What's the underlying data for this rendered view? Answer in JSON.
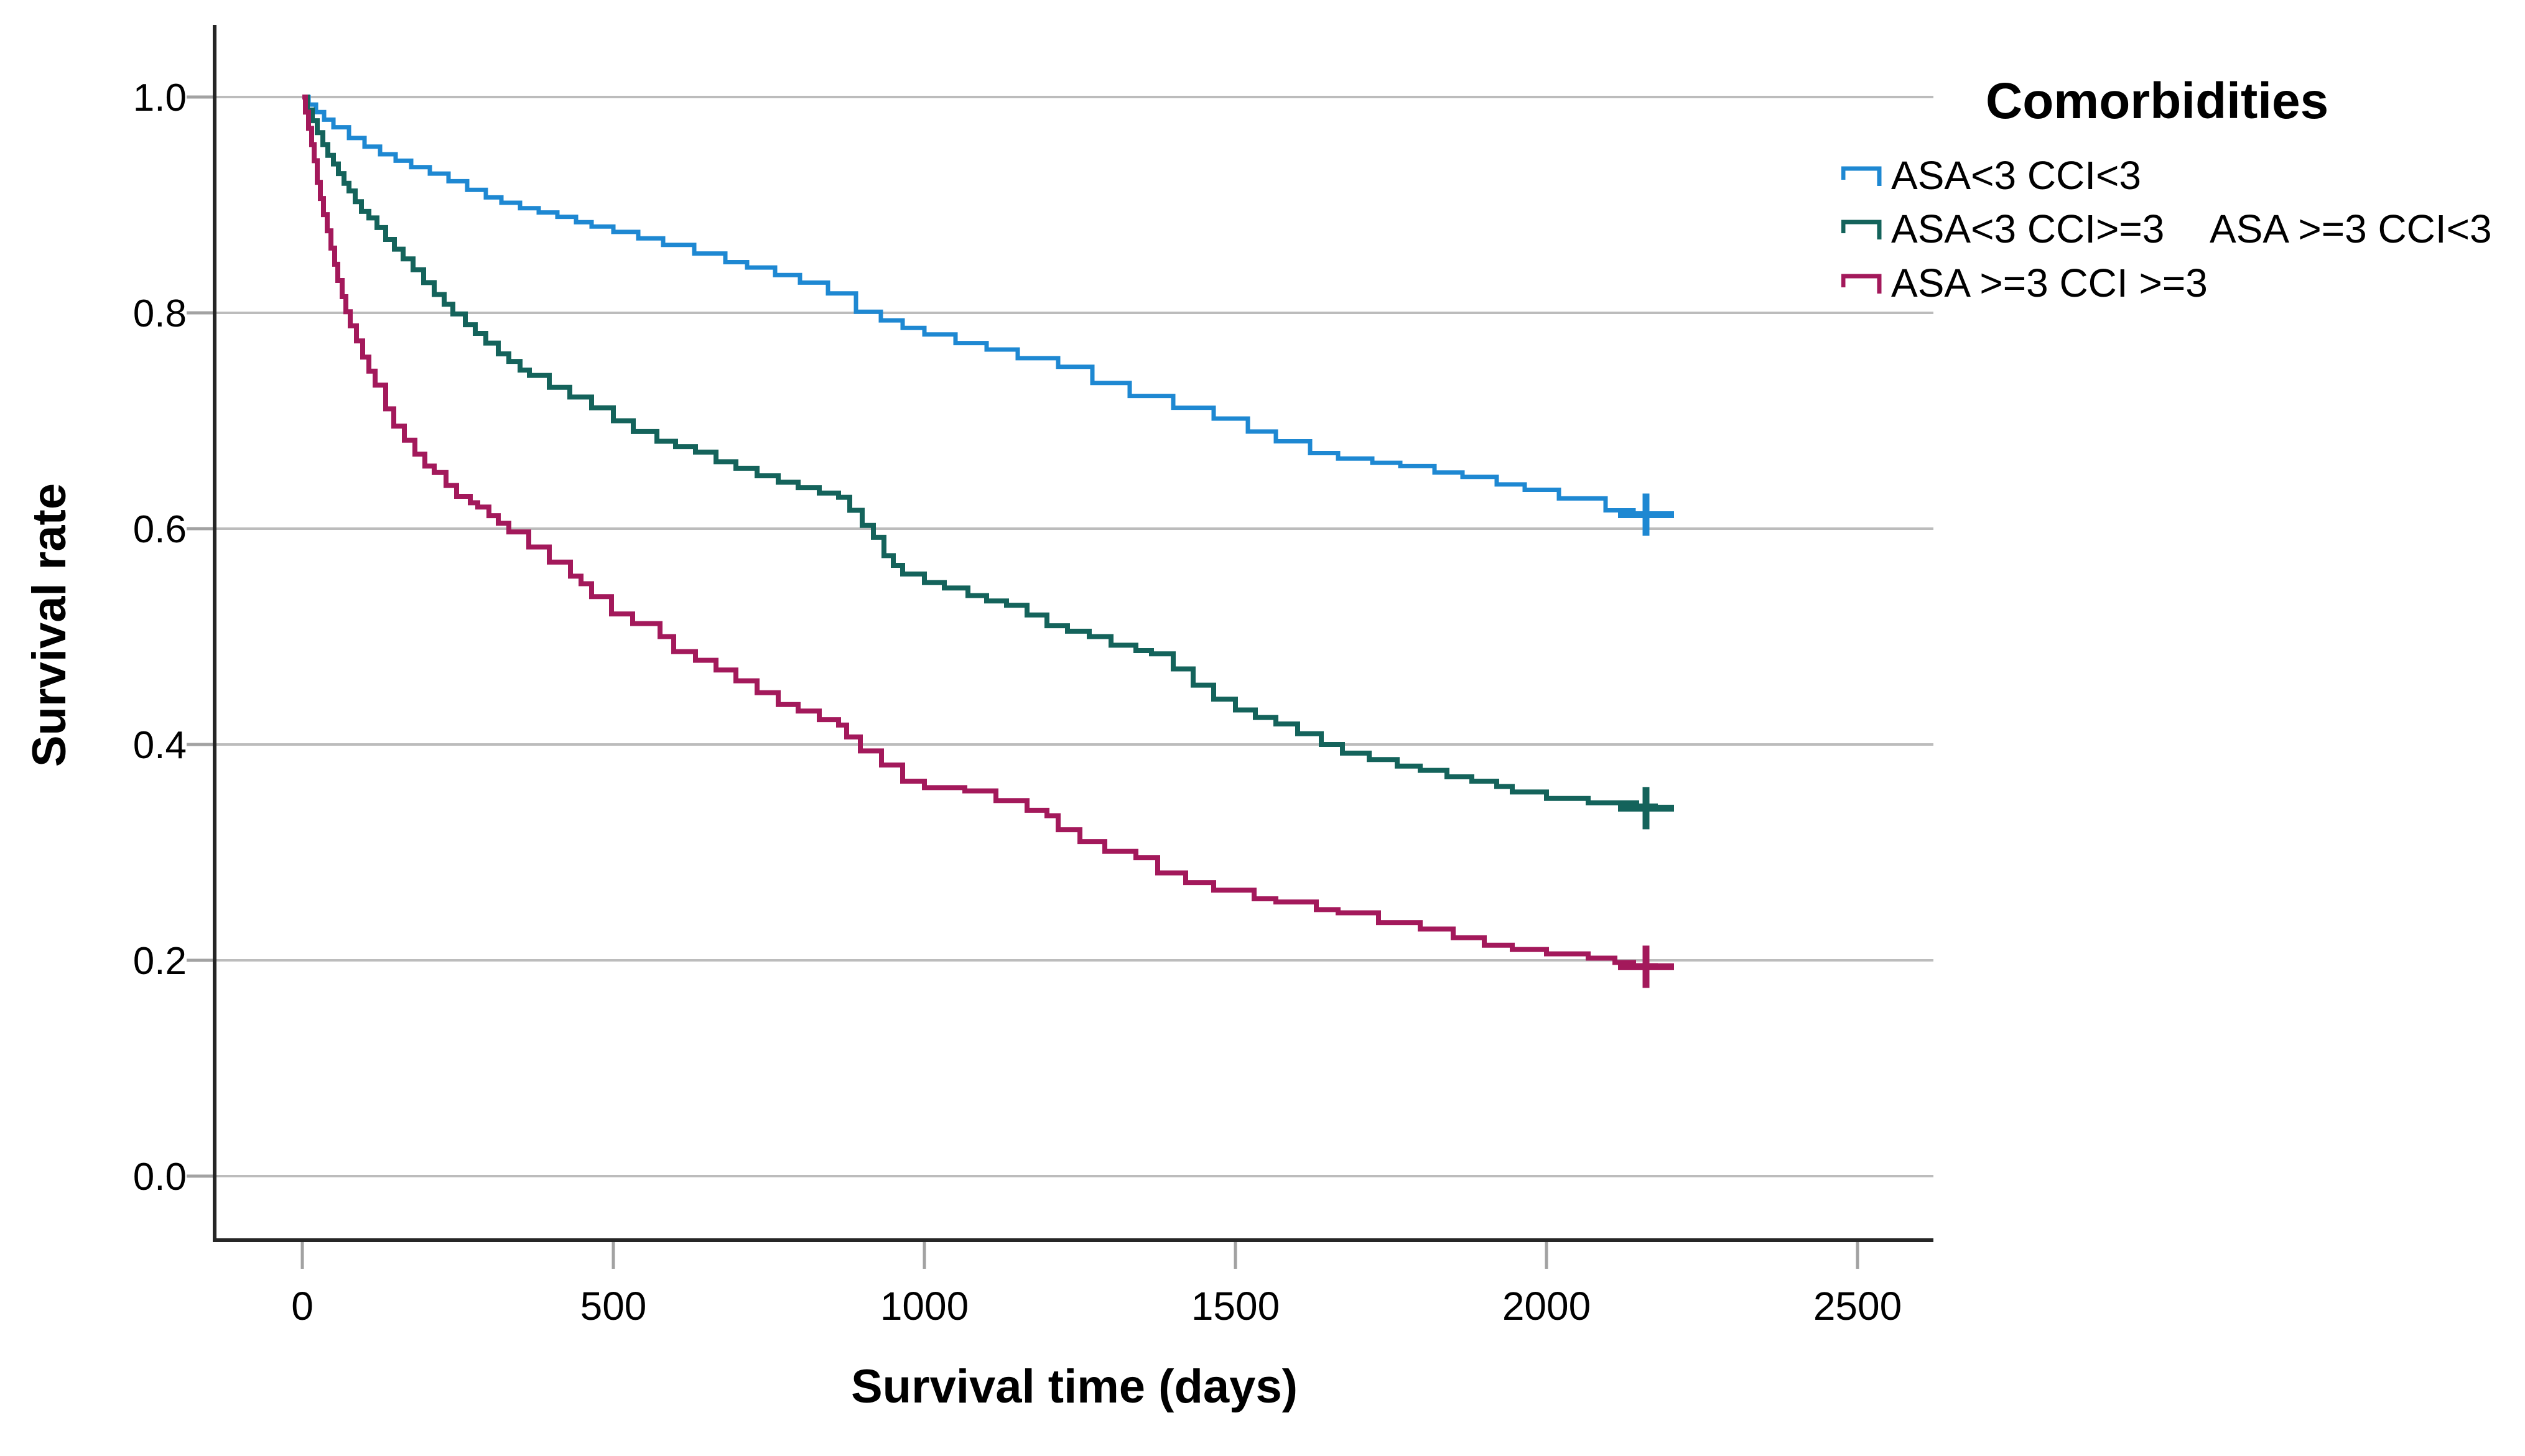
{
  "figure": {
    "y_axis": {
      "label": "Survival rate",
      "ticks": [
        {
          "label": "1.0"
        },
        {
          "label": "0.8"
        },
        {
          "label": "0.6"
        },
        {
          "label": "0.4"
        },
        {
          "label": "0.2"
        },
        {
          "label": "0.0"
        }
      ]
    },
    "x_axis": {
      "label": "Survival time (days)",
      "ticks": [
        {
          "label": "0"
        },
        {
          "label": "500"
        },
        {
          "label": "1000"
        },
        {
          "label": "1500"
        },
        {
          "label": "2000"
        },
        {
          "label": "2500"
        }
      ]
    },
    "legend": {
      "title": "Comorbidities",
      "entries": [
        {
          "label": "ASA<3 CCI<3",
          "color": "#1E88D2"
        },
        {
          "label": "ASA<3 CCI>=3",
          "label2": "ASA >=3 CCI<3",
          "color": "#14635B"
        },
        {
          "label": "ASA >=3 CCI >=3",
          "color": "#A3195B"
        }
      ]
    }
  },
  "chart_data": {
    "type": "line",
    "subtype": "kaplan-meier-step",
    "title": "",
    "xlabel": "Survival time (days)",
    "ylabel": "Survival rate",
    "xlim": [
      0,
      2620
    ],
    "ylim": [
      0.0,
      1.05
    ],
    "x_ticks": [
      0,
      500,
      1000,
      1500,
      2000,
      2500
    ],
    "y_ticks": [
      1.0,
      0.8,
      0.6,
      0.4,
      0.2,
      0.0
    ],
    "grid": "horizontal",
    "legend_position": "top-right",
    "colors": {
      "gridline": "#BCBCBC",
      "tick": "#A2A2A2",
      "axis": "#262626"
    },
    "series": [
      {
        "name": "ASA<3 CCI<3",
        "color": "#1E88D2",
        "stroke_width": 7,
        "censor_time": 2160,
        "censor_value": 0.613,
        "points": [
          [
            0,
            1.0
          ],
          [
            10,
            0.993
          ],
          [
            22,
            0.986
          ],
          [
            35,
            0.979
          ],
          [
            50,
            0.972
          ],
          [
            75,
            0.962
          ],
          [
            100,
            0.954
          ],
          [
            125,
            0.947
          ],
          [
            150,
            0.941
          ],
          [
            175,
            0.935
          ],
          [
            205,
            0.929
          ],
          [
            235,
            0.922
          ],
          [
            265,
            0.914
          ],
          [
            295,
            0.907
          ],
          [
            320,
            0.902
          ],
          [
            350,
            0.897
          ],
          [
            380,
            0.893
          ],
          [
            410,
            0.889
          ],
          [
            440,
            0.884
          ],
          [
            465,
            0.88
          ],
          [
            500,
            0.875
          ],
          [
            540,
            0.869
          ],
          [
            580,
            0.863
          ],
          [
            630,
            0.855
          ],
          [
            680,
            0.847
          ],
          [
            715,
            0.842
          ],
          [
            760,
            0.835
          ],
          [
            800,
            0.828
          ],
          [
            845,
            0.818
          ],
          [
            890,
            0.801
          ],
          [
            930,
            0.793
          ],
          [
            965,
            0.786
          ],
          [
            1000,
            0.78
          ],
          [
            1050,
            0.772
          ],
          [
            1100,
            0.766
          ],
          [
            1150,
            0.758
          ],
          [
            1215,
            0.75
          ],
          [
            1270,
            0.735
          ],
          [
            1330,
            0.723
          ],
          [
            1400,
            0.712
          ],
          [
            1465,
            0.702
          ],
          [
            1520,
            0.69
          ],
          [
            1565,
            0.681
          ],
          [
            1620,
            0.67
          ],
          [
            1665,
            0.665
          ],
          [
            1720,
            0.661
          ],
          [
            1765,
            0.658
          ],
          [
            1820,
            0.652
          ],
          [
            1865,
            0.648
          ],
          [
            1920,
            0.641
          ],
          [
            1965,
            0.636
          ],
          [
            2020,
            0.628
          ],
          [
            2095,
            0.617
          ],
          [
            2140,
            0.614
          ],
          [
            2175,
            0.613
          ]
        ]
      },
      {
        "name": "ASA<3 CCI>=3 / ASA >=3 CCI<3",
        "color": "#14635B",
        "stroke_width": 8,
        "censor_time": 2160,
        "censor_value": 0.341,
        "points": [
          [
            0,
            1.0
          ],
          [
            8,
            0.988
          ],
          [
            16,
            0.978
          ],
          [
            24,
            0.967
          ],
          [
            33,
            0.956
          ],
          [
            41,
            0.946
          ],
          [
            50,
            0.938
          ],
          [
            58,
            0.929
          ],
          [
            67,
            0.92
          ],
          [
            75,
            0.913
          ],
          [
            85,
            0.903
          ],
          [
            95,
            0.894
          ],
          [
            107,
            0.888
          ],
          [
            120,
            0.879
          ],
          [
            134,
            0.868
          ],
          [
            148,
            0.859
          ],
          [
            162,
            0.85
          ],
          [
            178,
            0.84
          ],
          [
            195,
            0.828
          ],
          [
            212,
            0.817
          ],
          [
            228,
            0.808
          ],
          [
            242,
            0.799
          ],
          [
            262,
            0.789
          ],
          [
            278,
            0.781
          ],
          [
            295,
            0.772
          ],
          [
            315,
            0.762
          ],
          [
            332,
            0.755
          ],
          [
            350,
            0.747
          ],
          [
            365,
            0.742
          ],
          [
            397,
            0.731
          ],
          [
            430,
            0.722
          ],
          [
            465,
            0.712
          ],
          [
            500,
            0.7
          ],
          [
            532,
            0.69
          ],
          [
            570,
            0.681
          ],
          [
            600,
            0.676
          ],
          [
            632,
            0.671
          ],
          [
            665,
            0.662
          ],
          [
            697,
            0.656
          ],
          [
            731,
            0.649
          ],
          [
            765,
            0.643
          ],
          [
            797,
            0.638
          ],
          [
            831,
            0.633
          ],
          [
            862,
            0.629
          ],
          [
            880,
            0.617
          ],
          [
            900,
            0.603
          ],
          [
            918,
            0.592
          ],
          [
            935,
            0.575
          ],
          [
            950,
            0.566
          ],
          [
            965,
            0.558
          ],
          [
            1000,
            0.55
          ],
          [
            1032,
            0.545
          ],
          [
            1070,
            0.538
          ],
          [
            1100,
            0.533
          ],
          [
            1132,
            0.529
          ],
          [
            1165,
            0.52
          ],
          [
            1197,
            0.51
          ],
          [
            1230,
            0.505
          ],
          [
            1265,
            0.5
          ],
          [
            1300,
            0.492
          ],
          [
            1340,
            0.487
          ],
          [
            1365,
            0.484
          ],
          [
            1400,
            0.47
          ],
          [
            1432,
            0.455
          ],
          [
            1465,
            0.442
          ],
          [
            1500,
            0.432
          ],
          [
            1532,
            0.425
          ],
          [
            1565,
            0.419
          ],
          [
            1600,
            0.41
          ],
          [
            1638,
            0.4
          ],
          [
            1672,
            0.392
          ],
          [
            1715,
            0.386
          ],
          [
            1760,
            0.38
          ],
          [
            1797,
            0.376
          ],
          [
            1840,
            0.37
          ],
          [
            1880,
            0.366
          ],
          [
            1920,
            0.361
          ],
          [
            1945,
            0.356
          ],
          [
            2000,
            0.35
          ],
          [
            2067,
            0.346
          ],
          [
            2145,
            0.343
          ],
          [
            2175,
            0.341
          ]
        ]
      },
      {
        "name": "ASA >=3 CCI >=3",
        "color": "#A3195B",
        "stroke_width": 8,
        "censor_time": 2160,
        "censor_value": 0.194,
        "points": [
          [
            0,
            1.0
          ],
          [
            5,
            0.986
          ],
          [
            10,
            0.971
          ],
          [
            15,
            0.956
          ],
          [
            19,
            0.941
          ],
          [
            24,
            0.921
          ],
          [
            29,
            0.906
          ],
          [
            34,
            0.891
          ],
          [
            40,
            0.876
          ],
          [
            46,
            0.86
          ],
          [
            52,
            0.845
          ],
          [
            57,
            0.83
          ],
          [
            64,
            0.815
          ],
          [
            70,
            0.801
          ],
          [
            77,
            0.788
          ],
          [
            87,
            0.774
          ],
          [
            97,
            0.759
          ],
          [
            107,
            0.746
          ],
          [
            117,
            0.733
          ],
          [
            134,
            0.711
          ],
          [
            147,
            0.695
          ],
          [
            164,
            0.682
          ],
          [
            181,
            0.669
          ],
          [
            197,
            0.658
          ],
          [
            212,
            0.652
          ],
          [
            231,
            0.64
          ],
          [
            248,
            0.63
          ],
          [
            270,
            0.624
          ],
          [
            282,
            0.62
          ],
          [
            300,
            0.612
          ],
          [
            315,
            0.605
          ],
          [
            332,
            0.597
          ],
          [
            364,
            0.583
          ],
          [
            397,
            0.569
          ],
          [
            431,
            0.556
          ],
          [
            448,
            0.549
          ],
          [
            465,
            0.537
          ],
          [
            497,
            0.521
          ],
          [
            531,
            0.512
          ],
          [
            575,
            0.5
          ],
          [
            597,
            0.486
          ],
          [
            632,
            0.478
          ],
          [
            665,
            0.469
          ],
          [
            697,
            0.459
          ],
          [
            731,
            0.448
          ],
          [
            765,
            0.437
          ],
          [
            797,
            0.431
          ],
          [
            831,
            0.423
          ],
          [
            862,
            0.418
          ],
          [
            875,
            0.407
          ],
          [
            897,
            0.394
          ],
          [
            931,
            0.381
          ],
          [
            965,
            0.366
          ],
          [
            1000,
            0.36
          ],
          [
            1065,
            0.357
          ],
          [
            1115,
            0.348
          ],
          [
            1165,
            0.339
          ],
          [
            1197,
            0.334
          ],
          [
            1215,
            0.321
          ],
          [
            1250,
            0.31
          ],
          [
            1290,
            0.301
          ],
          [
            1340,
            0.295
          ],
          [
            1375,
            0.281
          ],
          [
            1420,
            0.272
          ],
          [
            1465,
            0.265
          ],
          [
            1530,
            0.257
          ],
          [
            1565,
            0.254
          ],
          [
            1630,
            0.247
          ],
          [
            1665,
            0.244
          ],
          [
            1730,
            0.235
          ],
          [
            1797,
            0.229
          ],
          [
            1850,
            0.221
          ],
          [
            1900,
            0.214
          ],
          [
            1945,
            0.21
          ],
          [
            2000,
            0.206
          ],
          [
            2067,
            0.202
          ],
          [
            2110,
            0.198
          ],
          [
            2140,
            0.195
          ],
          [
            2175,
            0.194
          ]
        ]
      }
    ]
  }
}
